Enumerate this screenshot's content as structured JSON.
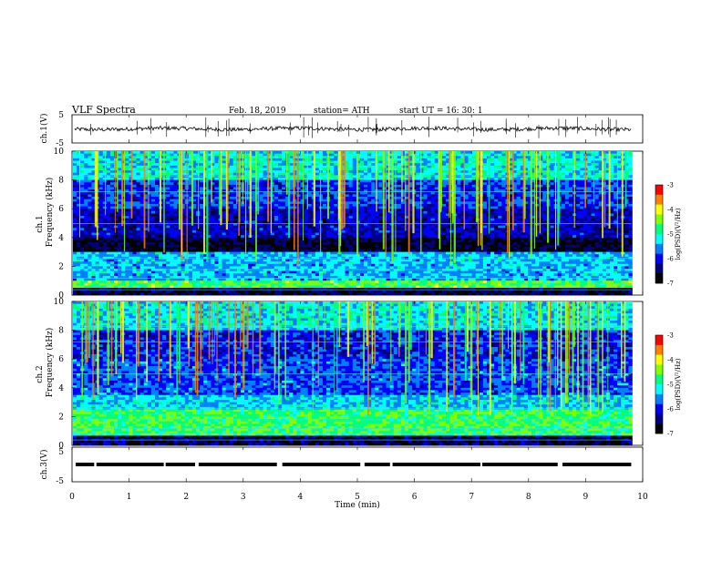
{
  "header": {
    "title": "VLF  Spectra",
    "date": "Feb. 18, 2019",
    "station": "station= ATH",
    "start_ut": "start  UT  =    16: 30: 1"
  },
  "colorbar": {
    "label": "log(PSD)(V²/Hz)",
    "ticks": [
      "-3",
      "-4",
      "-5",
      "-6",
      "-7"
    ]
  },
  "chart_data": [
    {
      "type": "line",
      "name": "ch1-waveform",
      "ylabel": "ch.1(V)",
      "ylim": [
        -5,
        5
      ],
      "y_tick_labels": [
        "5",
        "-5"
      ],
      "approx_level": 0.0,
      "xlim": [
        0,
        10
      ],
      "data_end_min": 9.8
    },
    {
      "type": "heatmap",
      "name": "ch1-spectrogram",
      "ylabel": "ch.1\nFrequency (kHz)",
      "ylim": [
        0,
        10
      ],
      "y_tick_labels": [
        "0",
        "2",
        "4",
        "6",
        "8",
        "10"
      ],
      "xlim": [
        0,
        10
      ],
      "data_end_min": 9.8,
      "color_range": [
        -7,
        -3
      ]
    },
    {
      "type": "heatmap",
      "name": "ch2-spectrogram",
      "ylabel": "ch.2\nFrequency (kHz)",
      "ylim": [
        0,
        10
      ],
      "y_tick_labels": [
        "0",
        "2",
        "4",
        "6",
        "8",
        "10"
      ],
      "xlim": [
        0,
        10
      ],
      "data_end_min": 9.8,
      "color_range": [
        -7,
        -3
      ]
    },
    {
      "type": "line",
      "name": "ch3-signal",
      "ylabel": "ch.3(V)",
      "ylim": [
        -5,
        5
      ],
      "y_tick_labels": [
        "5",
        "-5"
      ],
      "approx_level": 0.0,
      "xlim": [
        0,
        10
      ],
      "data_end_min": 9.8,
      "xlabel": "Time  (min)",
      "x_tick_labels": [
        "0",
        "1",
        "2",
        "3",
        "4",
        "5",
        "6",
        "7",
        "8",
        "9",
        "10"
      ]
    }
  ],
  "colors": {
    "colormap": [
      "#000000",
      "#000080",
      "#0000ff",
      "#0080ff",
      "#00ffff",
      "#00ff80",
      "#80ff00",
      "#ffff00",
      "#ff8000",
      "#ff0000",
      "#ffffff"
    ]
  }
}
